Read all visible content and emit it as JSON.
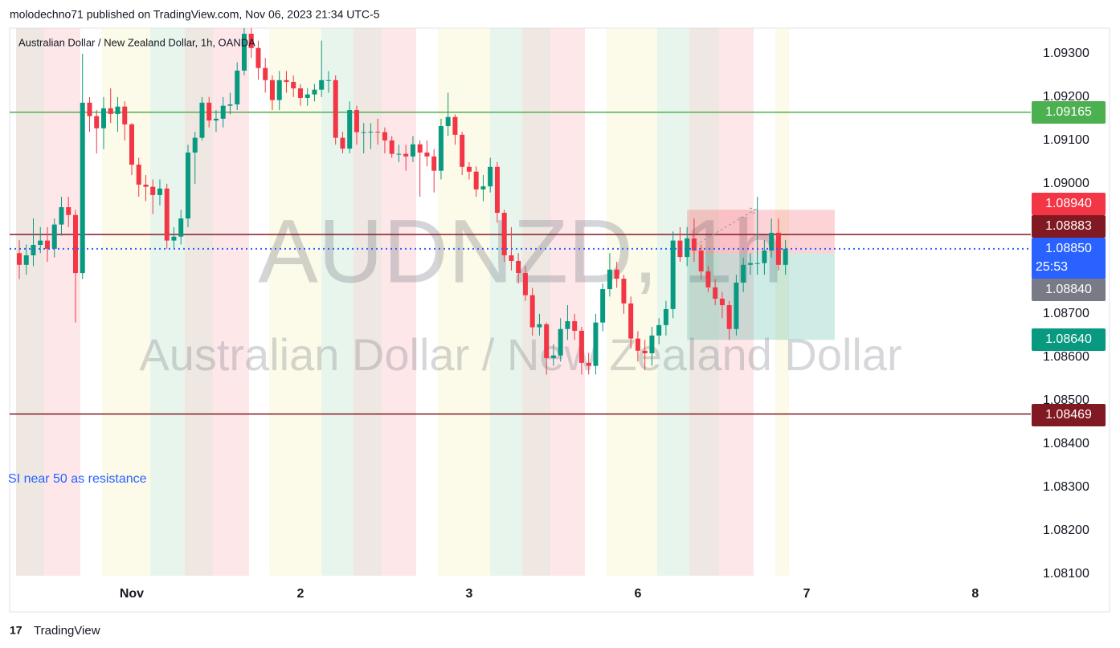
{
  "chart_data": {
    "type": "candlestick",
    "header": "molodechno71 published on TradingView.com, Nov 06, 2023 21:34 UTC-5",
    "title": "Australian Dollar / New Zealand Dollar, 1h, OANDA",
    "watermark": "AUDNZD, 1h",
    "watermark_subtitle": "Australian Dollar / New Zealand Dollar",
    "annotation": "SI near 50 as resistance",
    "footer": "TradingView",
    "up_color": "#089981",
    "down_color": "#f23645",
    "open": [
      1.0884,
      1.08813,
      1.08835,
      1.08859,
      1.08869,
      1.0885,
      1.08906,
      1.08946,
      1.08928,
      1.08794,
      1.09187,
      1.09156,
      1.09128,
      1.09174,
      1.09161,
      1.09178,
      1.09137,
      1.09044,
      1.08998,
      1.08993,
      1.08974,
      1.08989,
      1.08869,
      1.08878,
      1.0892,
      1.09072,
      1.09106,
      1.09187,
      1.09146,
      1.0915,
      1.0918,
      1.09183,
      1.09261,
      1.09346,
      1.09313,
      1.09267,
      1.09239,
      1.09193,
      1.09239,
      1.09235,
      1.0922,
      1.09198,
      1.09206,
      1.09217,
      1.09239,
      1.09239,
      1.09106,
      1.09081,
      1.0917,
      1.09119,
      1.09119,
      1.0912,
      1.09119,
      1.091,
      1.09069,
      1.09069,
      1.09063,
      1.09091,
      1.09072,
      1.09063,
      1.0903,
      1.09133,
      1.09154,
      1.09113,
      1.09039,
      1.09028,
      1.08987,
      1.08994,
      1.09039,
      1.08933,
      1.08835,
      1.08822,
      1.08794,
      1.08743,
      1.08669,
      1.08676,
      1.08598,
      1.08604,
      1.08665,
      1.08683,
      1.08661,
      1.08587,
      1.0858,
      1.0868,
      1.08757,
      1.08802,
      1.08781,
      1.08724,
      1.08643,
      1.08615,
      1.08609,
      1.0865,
      1.08674,
      1.08711,
      1.08869,
      1.08831,
      1.08874,
      1.08846,
      1.08798,
      1.08761,
      1.08735,
      1.0872,
      1.08665,
      1.08772,
      1.08813,
      1.08817,
      1.08817,
      1.08846,
      1.08887,
      1.08813
    ],
    "high": [
      1.0887,
      1.0886,
      1.0892,
      1.089,
      1.089,
      1.0892,
      1.0897,
      1.0897,
      1.0894,
      1.093,
      1.092,
      1.0917,
      1.092,
      1.0922,
      1.092,
      1.0919,
      1.0914,
      1.0906,
      1.0902,
      1.0901,
      1.0901,
      1.09,
      1.089,
      1.0894,
      1.0909,
      1.0912,
      1.092,
      1.092,
      1.0917,
      1.092,
      1.0921,
      1.0928,
      1.0936,
      1.0936,
      1.0933,
      1.0929,
      1.0925,
      1.0926,
      1.0926,
      1.0925,
      1.0923,
      1.0922,
      1.0923,
      1.0933,
      1.0926,
      1.0925,
      1.0912,
      1.0919,
      1.0918,
      1.0914,
      1.0914,
      1.0915,
      1.0913,
      1.0911,
      1.0909,
      1.0909,
      1.0911,
      1.091,
      1.091,
      1.0908,
      1.0915,
      1.0921,
      1.0916,
      1.0912,
      1.0905,
      1.0904,
      1.0902,
      1.0906,
      1.0905,
      1.0894,
      1.089,
      1.0884,
      1.0881,
      1.0876,
      1.087,
      1.0868,
      1.0863,
      1.0869,
      1.0872,
      1.087,
      1.0867,
      1.0861,
      1.087,
      1.0877,
      1.0884,
      1.0882,
      1.0879,
      1.0874,
      1.0866,
      1.0864,
      1.0867,
      1.0869,
      1.0873,
      1.0889,
      1.089,
      1.089,
      1.0892,
      1.0886,
      1.0881,
      1.0878,
      1.0875,
      1.0873,
      1.0879,
      1.0883,
      1.0884,
      1.0897,
      1.0887,
      1.0892,
      1.0892,
      1.0887
    ],
    "low": [
      1.0878,
      1.0879,
      1.0881,
      1.0884,
      1.0882,
      1.0883,
      1.0888,
      1.089,
      1.0868,
      1.0878,
      1.0912,
      1.0907,
      1.0908,
      1.0914,
      1.0912,
      1.091,
      1.0902,
      1.0897,
      1.0896,
      1.0893,
      1.0895,
      1.0885,
      1.0885,
      1.0886,
      1.089,
      1.09,
      1.091,
      1.0913,
      1.0912,
      1.0913,
      1.0916,
      1.0917,
      1.0925,
      1.0929,
      1.0924,
      1.0921,
      1.0917,
      1.0917,
      1.0921,
      1.092,
      1.0918,
      1.0918,
      1.0919,
      1.092,
      1.0921,
      1.0909,
      1.0907,
      1.0907,
      1.0909,
      1.0907,
      1.0908,
      1.0909,
      1.0907,
      1.0906,
      1.0905,
      1.0903,
      1.0905,
      1.0897,
      1.0904,
      1.0898,
      1.0901,
      1.0911,
      1.0909,
      1.0902,
      1.0901,
      1.0897,
      1.0896,
      1.0898,
      1.0891,
      1.0882,
      1.088,
      1.0877,
      1.0873,
      1.0865,
      1.0865,
      1.0856,
      1.0858,
      1.0859,
      1.0864,
      1.0864,
      1.0856,
      1.0856,
      1.0856,
      1.0866,
      1.0874,
      1.0876,
      1.087,
      1.0862,
      1.0859,
      1.0857,
      1.0858,
      1.0863,
      1.0865,
      1.0869,
      1.0882,
      1.0881,
      1.0882,
      1.0878,
      1.0875,
      1.0872,
      1.0869,
      1.0864,
      1.0865,
      1.0875,
      1.0879,
      1.0879,
      1.0879,
      1.0883,
      1.088,
      1.0879
    ],
    "close": [
      1.08813,
      1.08835,
      1.08859,
      1.08869,
      1.0885,
      1.08906,
      1.08946,
      1.08928,
      1.08794,
      1.09187,
      1.09156,
      1.09128,
      1.09174,
      1.09161,
      1.09178,
      1.09137,
      1.09044,
      1.08998,
      1.08993,
      1.08974,
      1.08989,
      1.08869,
      1.08878,
      1.0892,
      1.09072,
      1.09106,
      1.09187,
      1.09146,
      1.0915,
      1.0918,
      1.09183,
      1.09261,
      1.09346,
      1.09313,
      1.09267,
      1.09239,
      1.09193,
      1.09239,
      1.09235,
      1.0922,
      1.09198,
      1.09206,
      1.09217,
      1.09239,
      1.09239,
      1.09106,
      1.09081,
      1.0917,
      1.09119,
      1.09119,
      1.0912,
      1.09119,
      1.091,
      1.09069,
      1.09069,
      1.09063,
      1.09091,
      1.09072,
      1.09063,
      1.0903,
      1.09133,
      1.09154,
      1.09113,
      1.09039,
      1.09028,
      1.08987,
      1.08994,
      1.09039,
      1.08933,
      1.08835,
      1.08822,
      1.08794,
      1.08743,
      1.08669,
      1.08676,
      1.08598,
      1.08604,
      1.08665,
      1.08683,
      1.08661,
      1.08587,
      1.0858,
      1.0868,
      1.08757,
      1.08802,
      1.08781,
      1.08724,
      1.08643,
      1.08615,
      1.08609,
      1.0865,
      1.08674,
      1.08711,
      1.08869,
      1.08831,
      1.08874,
      1.08846,
      1.08798,
      1.08761,
      1.08735,
      1.0872,
      1.08665,
      1.08772,
      1.08813,
      1.08817,
      1.08817,
      1.08846,
      1.08887,
      1.08813,
      1.0885
    ],
    "xlim": [
      -1.37,
      143.9
    ],
    "xticks": [
      {
        "value": 16,
        "label": "Nov"
      },
      {
        "value": 40,
        "label": "2"
      },
      {
        "value": 64,
        "label": "3"
      },
      {
        "value": 88,
        "label": "6"
      },
      {
        "value": 112,
        "label": "7"
      },
      {
        "value": 136,
        "label": "8"
      }
    ],
    "ylim": [
      1.08096,
      1.09359
    ],
    "yticks": [
      {
        "value": 1.093,
        "label": "1.09300"
      },
      {
        "value": 1.092,
        "label": "1.09200"
      },
      {
        "value": 1.091,
        "label": "1.09100"
      },
      {
        "value": 1.09,
        "label": "1.09000"
      },
      {
        "value": 1.089,
        "label": "1.08900"
      },
      {
        "value": 1.088,
        "label": "1.08800"
      },
      {
        "value": 1.087,
        "label": "1.08700"
      },
      {
        "value": 1.086,
        "label": "1.08600"
      },
      {
        "value": 1.085,
        "label": "1.08500"
      },
      {
        "value": 1.084,
        "label": "1.08400"
      },
      {
        "value": 1.083,
        "label": "1.08300"
      },
      {
        "value": 1.082,
        "label": "1.08200"
      },
      {
        "value": 1.081,
        "label": "1.08100"
      }
    ],
    "levels": [
      {
        "value": 1.09165,
        "color": "#4caf50"
      },
      {
        "value": 1.08883,
        "color": "#801922"
      },
      {
        "value": 1.08469,
        "color": "#801922"
      }
    ],
    "last_price": {
      "value": 1.0885,
      "label": "1.08850"
    },
    "countdown": "25:53",
    "position": {
      "stop": {
        "value": 1.0894,
        "label": "1.08940"
      },
      "entry": {
        "value": 1.0884,
        "label": "1.08840"
      },
      "target": {
        "value": 1.0864,
        "label": "1.08640"
      },
      "x_range": [
        95,
        116
      ]
    }
  }
}
